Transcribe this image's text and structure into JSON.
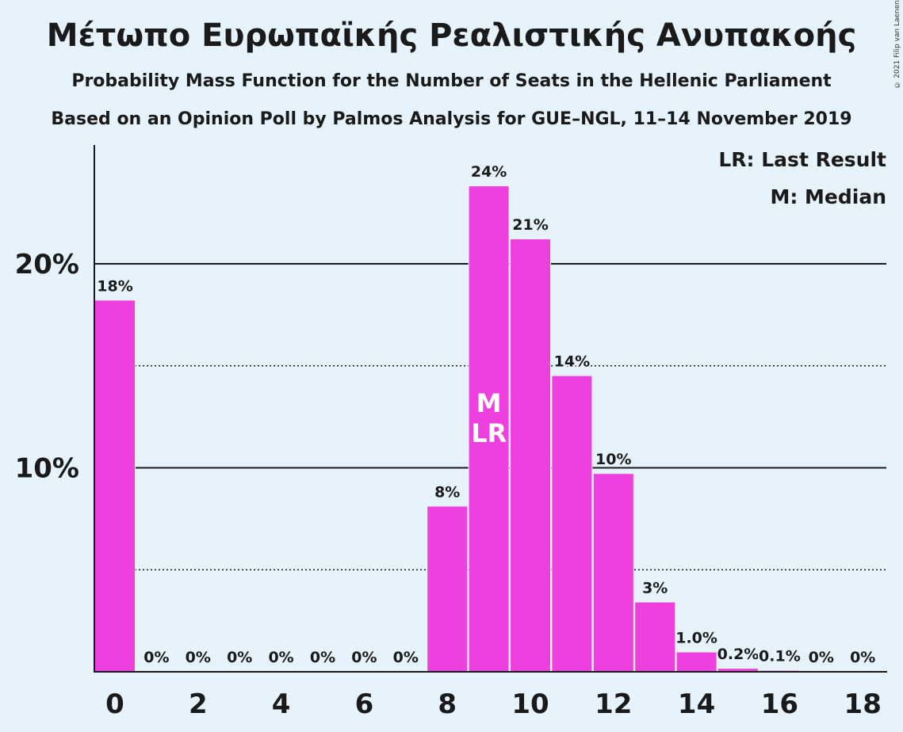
{
  "title": "Μέτωπο Ευρωπαϊκής Ρεαλιστικής Ανυπακοής",
  "subtitle1": "Probability Mass Function for the Number of Seats in the Hellenic Parliament",
  "subtitle2": "Based on an Opinion Poll by Palmos Analysis for GUE–NGL, 11–14 November 2019",
  "copyright": "© 2021 Filip van Laenen",
  "legend": {
    "lr": "LR: Last Result",
    "m": "M: Median"
  },
  "colors": {
    "bar": "#ee3fdf",
    "background": "#e6f2fc",
    "text": "#1a1a1a"
  },
  "chart_data": {
    "type": "bar",
    "categories": [
      0,
      1,
      2,
      3,
      4,
      5,
      6,
      7,
      8,
      9,
      10,
      11,
      12,
      13,
      14,
      15,
      16,
      17,
      18
    ],
    "values": [
      18.2,
      0,
      0,
      0,
      0,
      0,
      0,
      0,
      8.1,
      23.8,
      21.2,
      14.5,
      9.7,
      3.4,
      0.95,
      0.15,
      0.05,
      0,
      0
    ],
    "labels": [
      "18%",
      "0%",
      "0%",
      "0%",
      "0%",
      "0%",
      "0%",
      "0%",
      "8%",
      "24%",
      "21%",
      "14%",
      "10%",
      "3%",
      "1.0%",
      "0.2%",
      "0.1%",
      "0%",
      "0%"
    ],
    "xticks": [
      "0",
      "2",
      "4",
      "6",
      "8",
      "10",
      "12",
      "14",
      "16",
      "18"
    ],
    "yticks": [
      "10%",
      "20%"
    ],
    "ylim": [
      0,
      26
    ],
    "median": 9,
    "last_result": 9,
    "median_label": "M",
    "lr_label": "LR",
    "grid": "solid at 10% and 20%, dotted at 5% and 15%",
    "legend_position": "top-right"
  }
}
